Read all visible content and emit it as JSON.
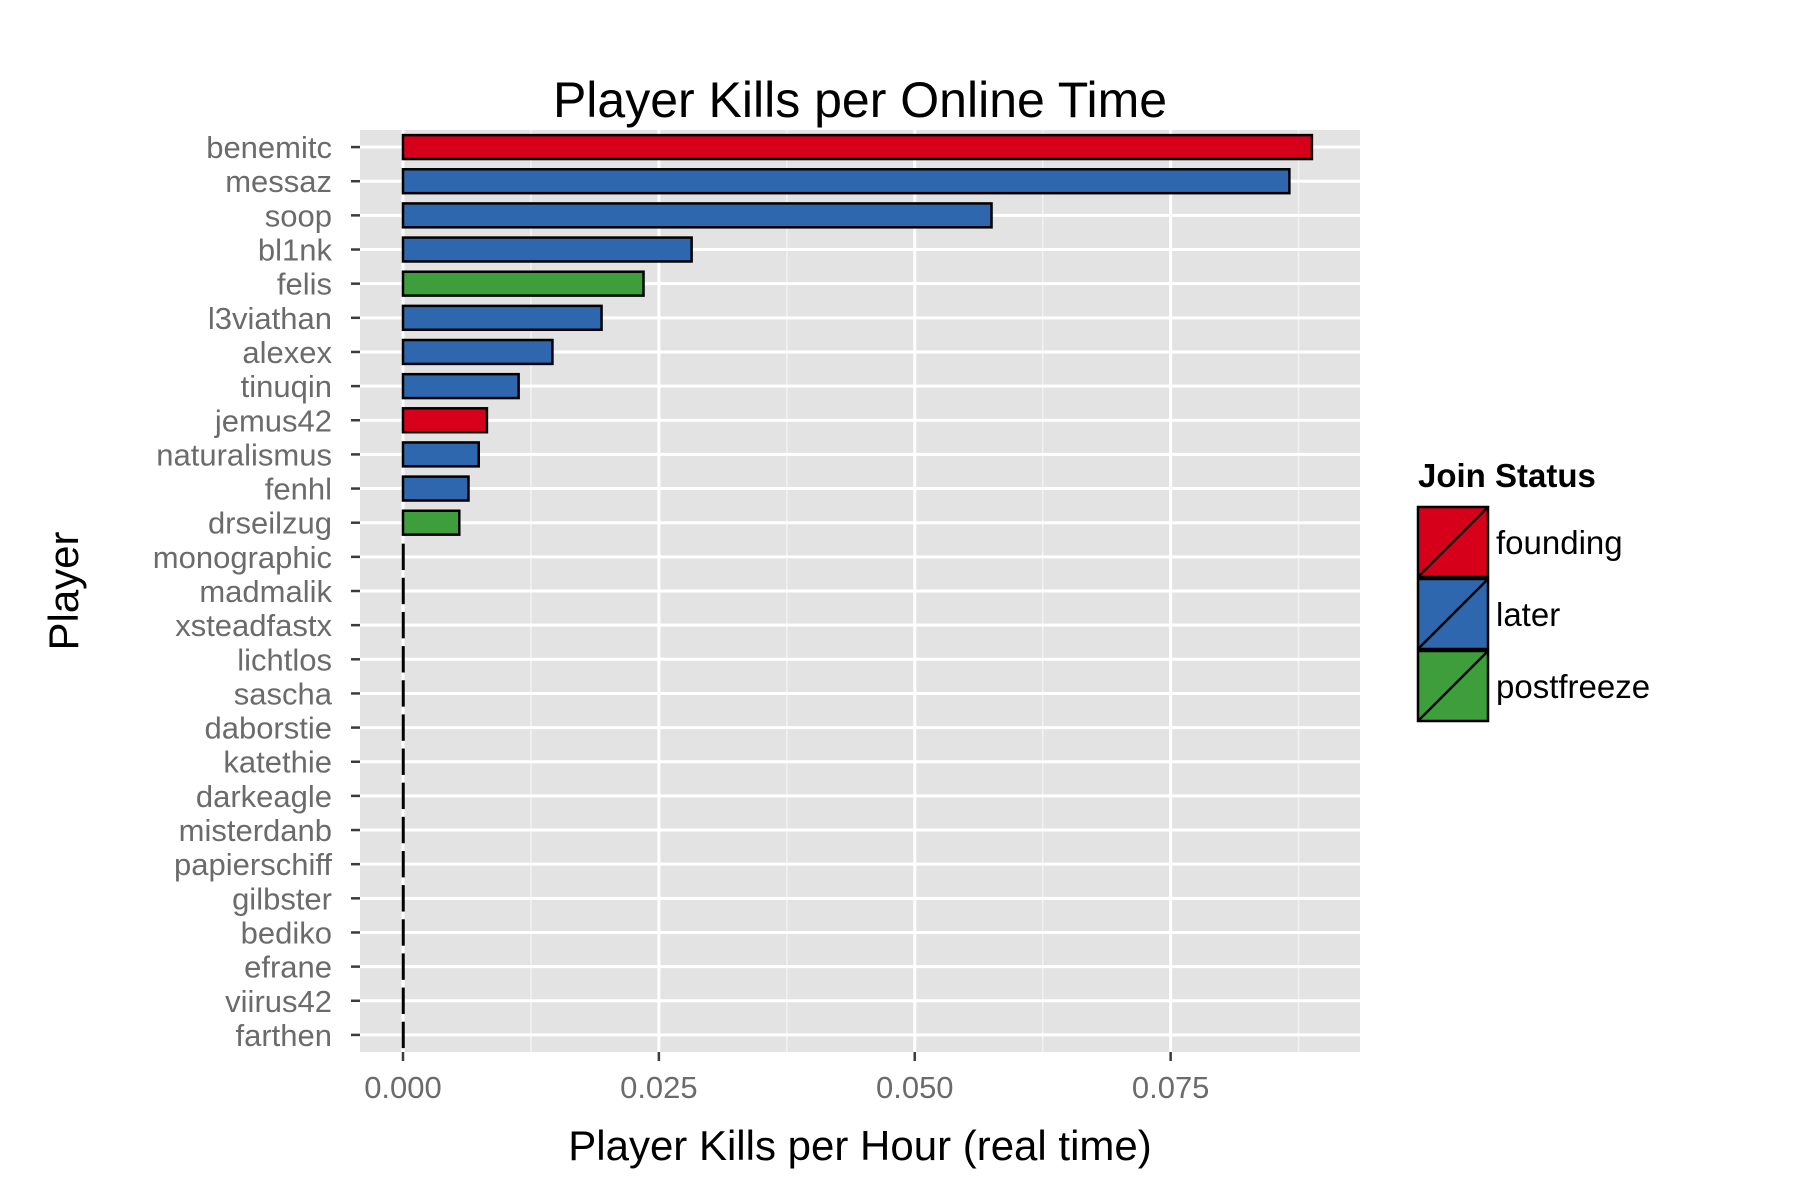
{
  "chart_data": {
    "type": "bar",
    "orientation": "horizontal",
    "title": "Player Kills per Online Time",
    "xlabel": "Player Kills per Hour (real time)",
    "ylabel": "Player",
    "xlim": [
      -0.0042,
      0.0935
    ],
    "xticks": [
      0.0,
      0.025,
      0.05,
      0.075
    ],
    "xtick_labels": [
      "0.000",
      "0.025",
      "0.050",
      "0.075"
    ],
    "grid": true,
    "legend": {
      "title": "Join Status",
      "position": "right",
      "entries": [
        {
          "label": "founding",
          "color": "#d7001b"
        },
        {
          "label": "later",
          "color": "#2e67ad"
        },
        {
          "label": "postfreeze",
          "color": "#3e9e3b"
        }
      ]
    },
    "categories": [
      "benemitc",
      "messaz",
      "soop",
      "bl1nk",
      "felis",
      "l3viathan",
      "alexex",
      "tinuqin",
      "jemus42",
      "naturalismus",
      "fenhl",
      "drseilzug",
      "monographic",
      "madmalik",
      "xsteadfastx",
      "lichtlos",
      "sascha",
      "daborstie",
      "katethie",
      "darkeagle",
      "misterdanb",
      "papierschiff",
      "gilbster",
      "bediko",
      "efrane",
      "viirus42",
      "farthen"
    ],
    "values": [
      0.0888,
      0.0866,
      0.0575,
      0.0282,
      0.0235,
      0.0194,
      0.0146,
      0.0113,
      0.0082,
      0.0074,
      0.0064,
      0.0055,
      0,
      0,
      0,
      0,
      0,
      0,
      0,
      0,
      0,
      0,
      0,
      0,
      0,
      0,
      0
    ],
    "join_status": [
      "founding",
      "later",
      "later",
      "later",
      "postfreeze",
      "later",
      "later",
      "later",
      "founding",
      "later",
      "later",
      "postfreeze",
      "later",
      "later",
      "later",
      "later",
      "later",
      "later",
      "later",
      "later",
      "later",
      "later",
      "later",
      "later",
      "later",
      "later",
      "later"
    ]
  }
}
